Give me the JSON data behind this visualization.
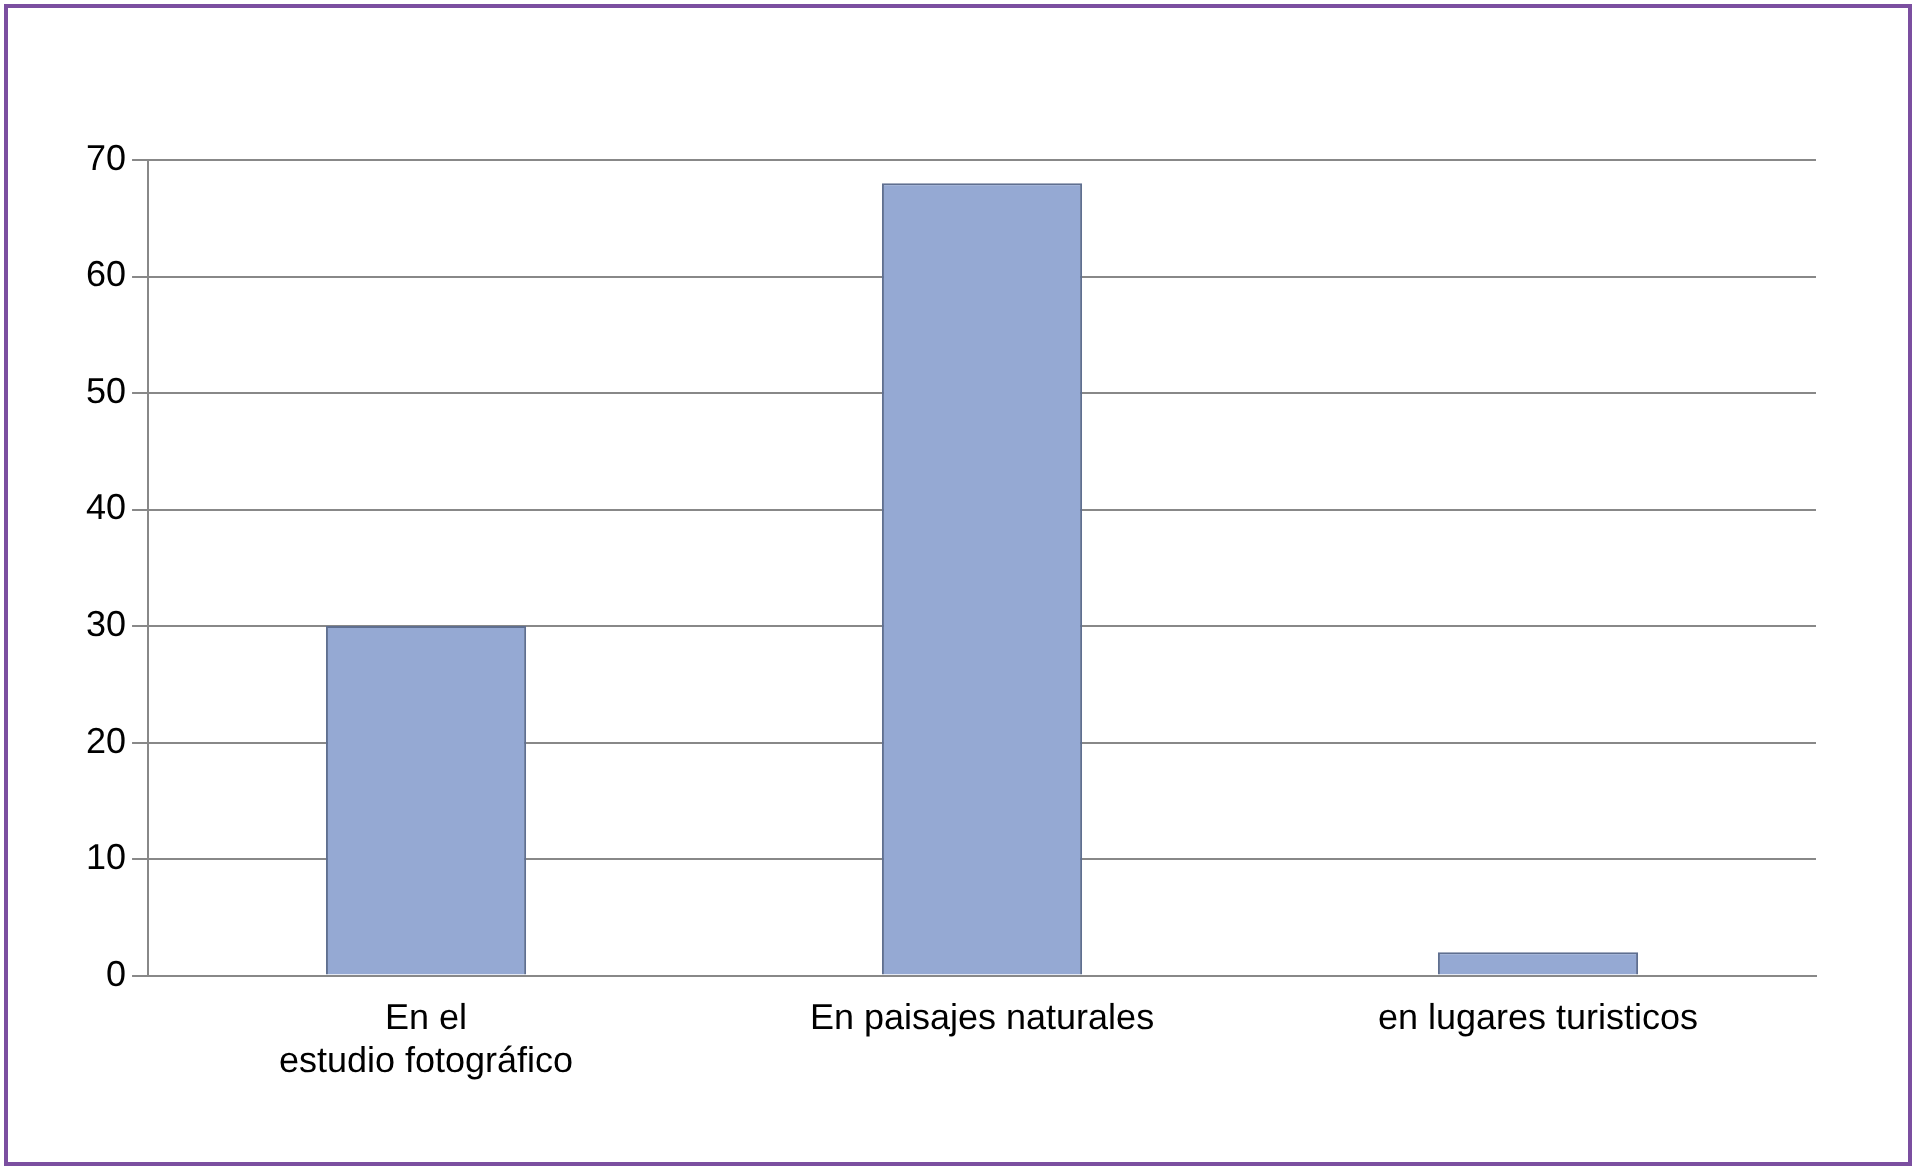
{
  "chart_data": {
    "type": "bar",
    "categories": [
      "En el estudio fotográfico",
      "En paisajes naturales",
      "en lugares turisticos"
    ],
    "values": [
      30,
      68,
      2
    ],
    "color": "#95a9d3",
    "ylim": [
      0,
      70
    ],
    "yticks": [
      0,
      10,
      20,
      30,
      40,
      50,
      60,
      70
    ],
    "grid": "y",
    "legend": false
  }
}
